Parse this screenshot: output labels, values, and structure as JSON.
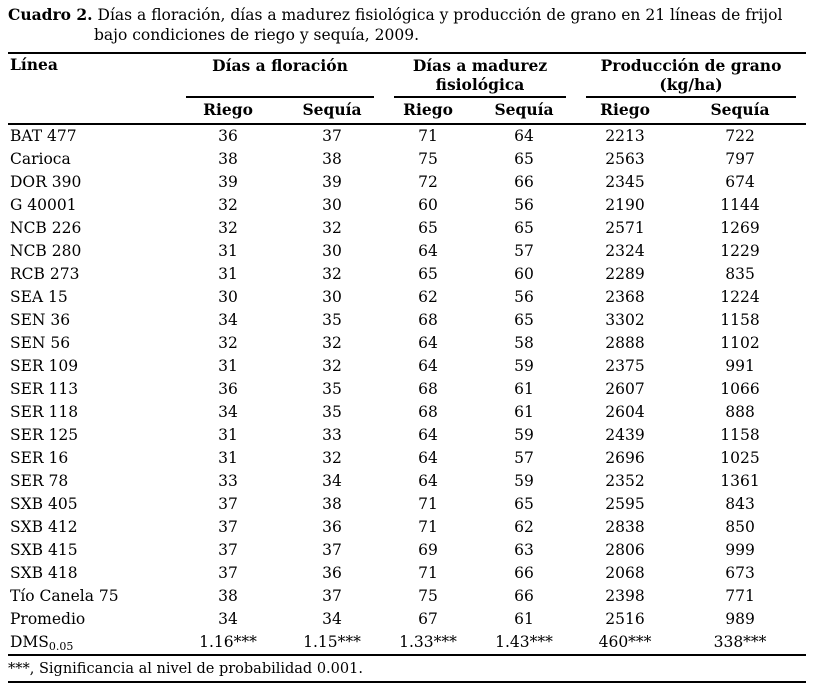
{
  "caption": {
    "label": "Cuadro 2.",
    "text": "Días a floración, días a madurez fisiológica y producción de grano en 21 líneas de frijol bajo condiciones de riego y sequía, 2009."
  },
  "table": {
    "line_header": "Línea",
    "groups": [
      {
        "line1": "Días a floración",
        "line2": ""
      },
      {
        "line1": "Días a madurez",
        "line2": "fisiológica"
      },
      {
        "line1": "Producción de grano",
        "line2": "(kg/ha)"
      }
    ],
    "subheaders": [
      "Riego",
      "Sequía",
      "Riego",
      "Sequía",
      "Riego",
      "Sequía"
    ],
    "rows": [
      {
        "line": "BAT 477",
        "values": [
          "36",
          "37",
          "71",
          "64",
          "2213",
          "722"
        ]
      },
      {
        "line": "Carioca",
        "values": [
          "38",
          "38",
          "75",
          "65",
          "2563",
          "797"
        ]
      },
      {
        "line": "DOR 390",
        "values": [
          "39",
          "39",
          "72",
          "66",
          "2345",
          "674"
        ]
      },
      {
        "line": "G 40001",
        "values": [
          "32",
          "30",
          "60",
          "56",
          "2190",
          "1144"
        ]
      },
      {
        "line": "NCB 226",
        "values": [
          "32",
          "32",
          "65",
          "65",
          "2571",
          "1269"
        ]
      },
      {
        "line": "NCB 280",
        "values": [
          "31",
          "30",
          "64",
          "57",
          "2324",
          "1229"
        ]
      },
      {
        "line": "RCB 273",
        "values": [
          "31",
          "32",
          "65",
          "60",
          "2289",
          "835"
        ]
      },
      {
        "line": "SEA 15",
        "values": [
          "30",
          "30",
          "62",
          "56",
          "2368",
          "1224"
        ]
      },
      {
        "line": "SEN 36",
        "values": [
          "34",
          "35",
          "68",
          "65",
          "3302",
          "1158"
        ]
      },
      {
        "line": "SEN 56",
        "values": [
          "32",
          "32",
          "64",
          "58",
          "2888",
          "1102"
        ]
      },
      {
        "line": "SER 109",
        "values": [
          "31",
          "32",
          "64",
          "59",
          "2375",
          "991"
        ]
      },
      {
        "line": "SER 113",
        "values": [
          "36",
          "35",
          "68",
          "61",
          "2607",
          "1066"
        ]
      },
      {
        "line": "SER 118",
        "values": [
          "34",
          "35",
          "68",
          "61",
          "2604",
          "888"
        ]
      },
      {
        "line": "SER 125",
        "values": [
          "31",
          "33",
          "64",
          "59",
          "2439",
          "1158"
        ]
      },
      {
        "line": "SER 16",
        "values": [
          "31",
          "32",
          "64",
          "57",
          "2696",
          "1025"
        ]
      },
      {
        "line": "SER 78",
        "values": [
          "33",
          "34",
          "64",
          "59",
          "2352",
          "1361"
        ]
      },
      {
        "line": "SXB 405",
        "values": [
          "37",
          "38",
          "71",
          "65",
          "2595",
          "843"
        ]
      },
      {
        "line": "SXB 412",
        "values": [
          "37",
          "36",
          "71",
          "62",
          "2838",
          "850"
        ]
      },
      {
        "line": "SXB 415",
        "values": [
          "37",
          "37",
          "69",
          "63",
          "2806",
          "999"
        ]
      },
      {
        "line": "SXB 418",
        "values": [
          "37",
          "36",
          "71",
          "66",
          "2068",
          "673"
        ]
      },
      {
        "line": "Tío Canela 75",
        "values": [
          "38",
          "37",
          "75",
          "66",
          "2398",
          "771"
        ]
      },
      {
        "line": "Promedio",
        "values": [
          "34",
          "34",
          "67",
          "61",
          "2516",
          "989"
        ]
      }
    ],
    "dms": {
      "label": "DMS",
      "subscript": "0.05",
      "values": [
        "1.16***",
        "1.15***",
        "1.33***",
        "1.43***",
        "460***",
        "338***"
      ]
    }
  },
  "footnote": "***, Significancia al nivel de probabilidad 0.001."
}
